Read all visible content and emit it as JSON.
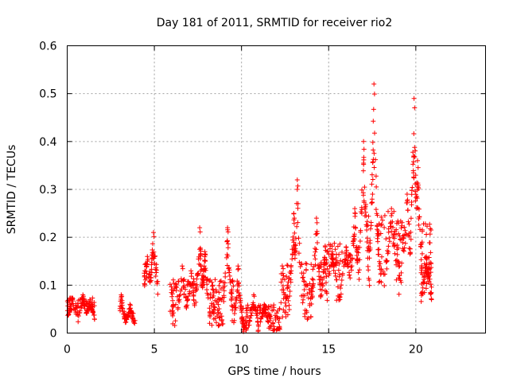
{
  "chart_data": {
    "type": "scatter",
    "title": "Day 181 of 2011, SRMTID for receiver rio2",
    "xlabel": "GPS time / hours",
    "ylabel": "SRMTID / TECUs",
    "xlim": [
      0,
      24
    ],
    "ylim": [
      0,
      0.6
    ],
    "x_ticks": [
      0,
      5,
      10,
      15,
      20
    ],
    "x_tick_labels": [
      "0",
      "5",
      "10",
      "15",
      "20"
    ],
    "y_ticks": [
      0,
      0.1,
      0.2,
      0.3,
      0.4,
      0.5,
      0.6
    ],
    "y_tick_labels": [
      "0",
      "0.1",
      "0.2",
      "0.3",
      "0.4",
      "0.5",
      "0.6"
    ],
    "grid": true,
    "marker": "plus",
    "color": "#ff0000",
    "series": [
      {
        "name": "SRMTID",
        "segments": [
          {
            "x_start": 0.0,
            "x_end": 1.6,
            "baseline": 0.035,
            "spread": 0.03,
            "peaks": [
              [
                0.3,
                0.07
              ],
              [
                0.9,
                0.08
              ],
              [
                1.3,
                0.07
              ]
            ]
          },
          {
            "x_start": 3.0,
            "x_end": 3.9,
            "baseline": 0.02,
            "spread": 0.02,
            "peaks": [
              [
                3.1,
                0.08
              ],
              [
                3.6,
                0.06
              ]
            ]
          },
          {
            "x_start": 4.4,
            "x_end": 5.2,
            "baseline": 0.08,
            "spread": 0.05,
            "peaks": [
              [
                4.6,
                0.16
              ],
              [
                4.95,
                0.21
              ]
            ]
          },
          {
            "x_start": 5.9,
            "x_end": 9.6,
            "baseline": 0.05,
            "spread": 0.05,
            "peaks": [
              [
                6.6,
                0.14
              ],
              [
                7.1,
                0.13
              ],
              [
                7.6,
                0.22
              ],
              [
                7.9,
                0.17
              ],
              [
                9.2,
                0.22
              ]
            ]
          },
          {
            "x_start": 9.6,
            "x_end": 12.2,
            "baseline": 0.02,
            "spread": 0.03,
            "peaks": [
              [
                9.8,
                0.14
              ],
              [
                10.7,
                0.08
              ],
              [
                11.3,
                0.06
              ]
            ]
          },
          {
            "x_start": 12.2,
            "x_end": 14.8,
            "baseline": 0.07,
            "spread": 0.06,
            "peaks": [
              [
                13.2,
                0.32
              ],
              [
                13.0,
                0.25
              ],
              [
                14.3,
                0.24
              ],
              [
                14.8,
                0.18
              ]
            ]
          },
          {
            "x_start": 14.8,
            "x_end": 16.8,
            "baseline": 0.11,
            "spread": 0.06,
            "peaks": [
              [
                15.2,
                0.17
              ],
              [
                16.0,
                0.18
              ],
              [
                16.5,
                0.26
              ]
            ]
          },
          {
            "x_start": 16.8,
            "x_end": 19.0,
            "baseline": 0.15,
            "spread": 0.08,
            "peaks": [
              [
                17.0,
                0.4
              ],
              [
                17.6,
                0.52
              ],
              [
                18.6,
                0.26
              ]
            ]
          },
          {
            "x_start": 19.0,
            "x_end": 20.9,
            "baseline": 0.13,
            "spread": 0.08,
            "peaks": [
              [
                19.9,
                0.49
              ],
              [
                20.1,
                0.36
              ],
              [
                19.5,
                0.29
              ]
            ]
          },
          {
            "x_start": 20.3,
            "x_end": 20.9,
            "baseline": 0.08,
            "spread": 0.06,
            "peaks": [
              [
                20.6,
                0.16
              ]
            ]
          }
        ],
        "point_count": 1400
      }
    ]
  }
}
